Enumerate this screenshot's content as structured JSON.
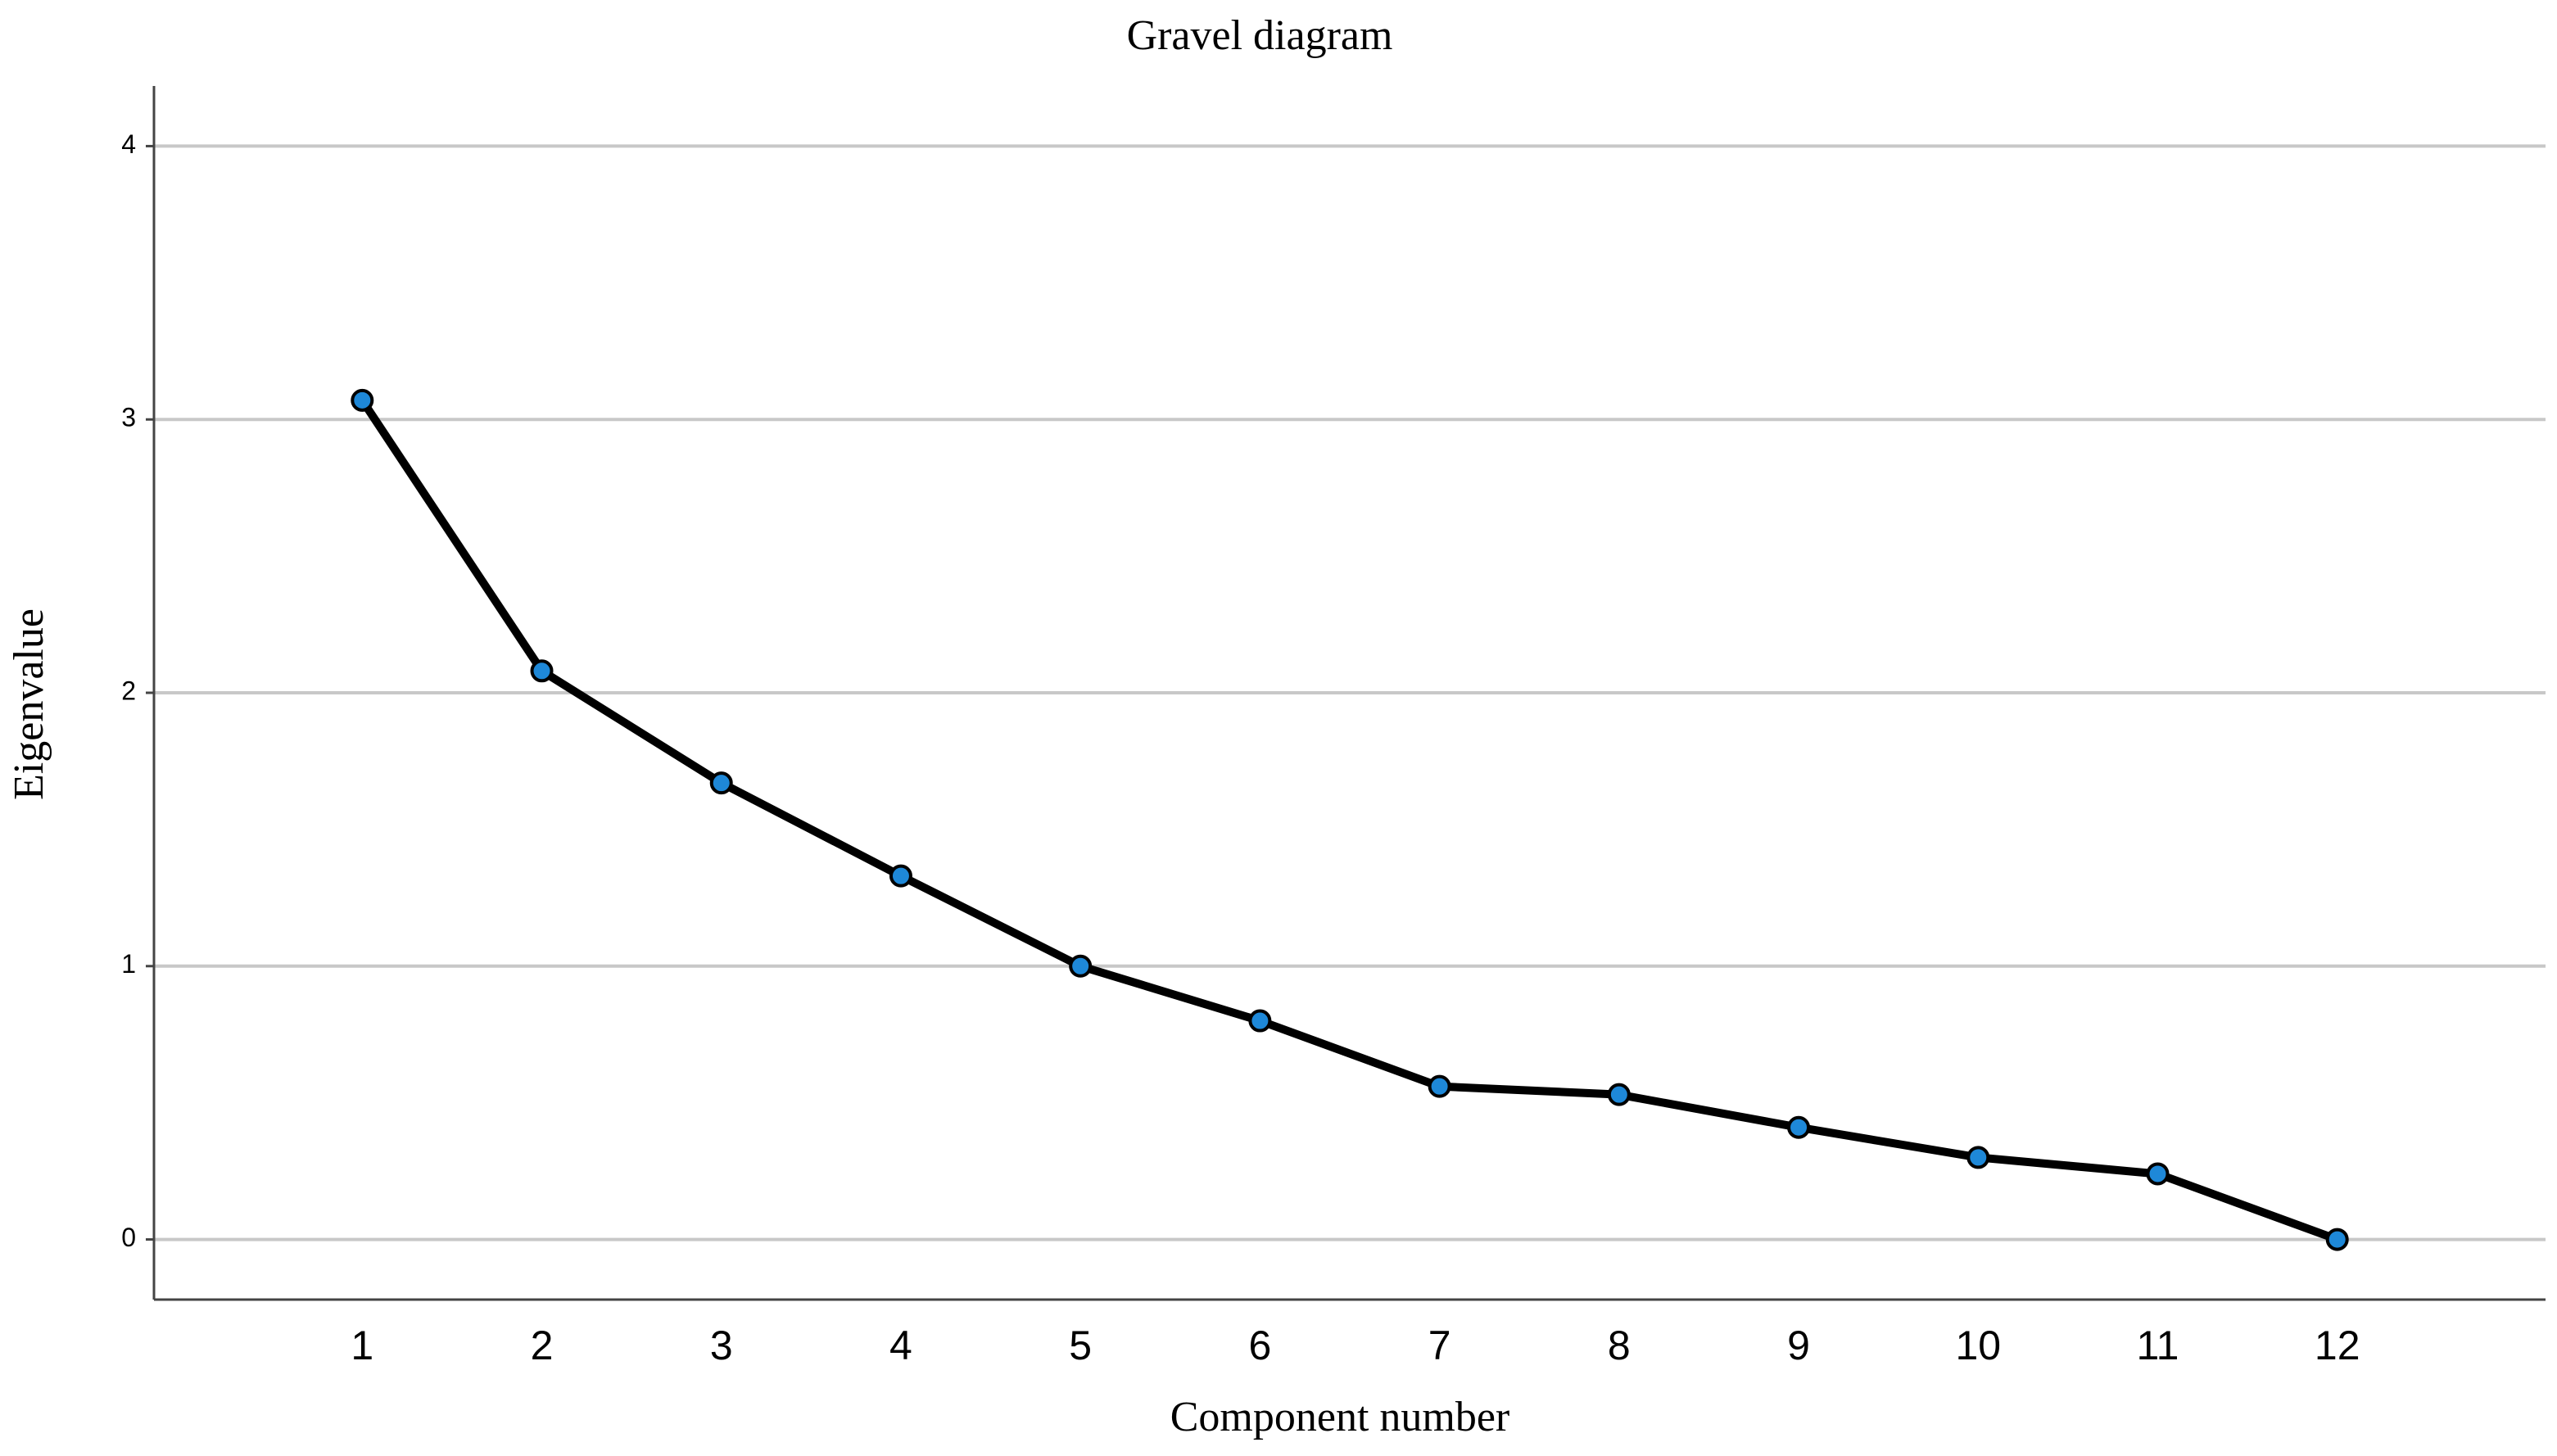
{
  "chart_data": {
    "type": "line",
    "title": "Gravel diagram",
    "x_label": "Component number",
    "y_label": "Eigenvalue",
    "x": [
      1,
      2,
      3,
      4,
      5,
      6,
      7,
      8,
      9,
      10,
      11,
      12
    ],
    "values": [
      3.07,
      2.08,
      1.67,
      1.33,
      1.0,
      0.8,
      0.56,
      0.53,
      0.41,
      0.3,
      0.24,
      0.0
    ],
    "color": "#000000",
    "marker_color": "#1e88d8",
    "xlim": [
      -0.16,
      13.16
    ],
    "xticks": [
      1,
      2,
      3,
      4,
      5,
      6,
      7,
      8,
      9,
      10,
      11,
      12
    ],
    "ylim": [
      -0.22,
      4.22
    ],
    "yticks": [
      0,
      1,
      2,
      3,
      4
    ],
    "grid": true
  }
}
